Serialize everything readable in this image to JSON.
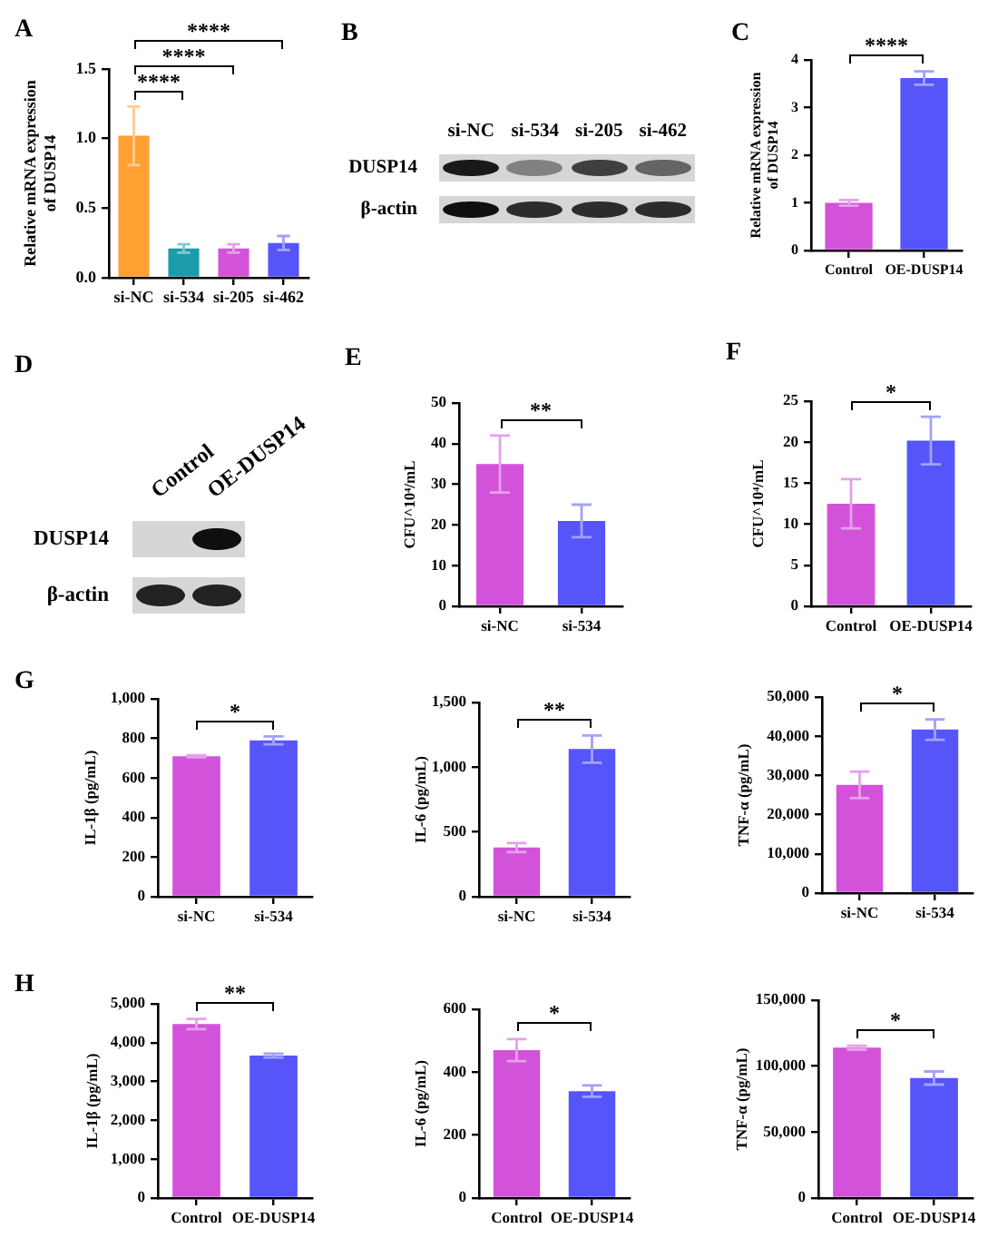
{
  "chart_data": [
    {
      "type": "bar",
      "title": "A",
      "ylabel": "Relative mRNA expression of DUSP14",
      "categories": [
        "si-NC",
        "si-534",
        "si-205",
        "si-462"
      ],
      "values": [
        1.02,
        0.21,
        0.21,
        0.25
      ],
      "errors": [
        0.21,
        0.03,
        0.03,
        0.05
      ],
      "colors": [
        "#ffa033",
        "#1b9cab",
        "#d253d9",
        "#5555fa"
      ],
      "ylim": [
        0,
        1.5
      ],
      "yticks": [
        {
          "value": 0,
          "label": "0.0"
        },
        0.5,
        {
          "value": 1,
          "label": "1.0"
        },
        1.5
      ],
      "annotations": [
        "****",
        "****",
        "****"
      ]
    },
    {
      "type": "other",
      "title": "B",
      "categories": [
        "si-NC",
        "si-534",
        "si-205",
        "si-462"
      ],
      "y_categories": [
        "DUSP14",
        "β-actin"
      ]
    },
    {
      "type": "bar",
      "title": "C",
      "ylabel": "Relative mRNA expression of DUSP14",
      "categories": [
        "Control",
        "OE-DUSP14"
      ],
      "values": [
        1.0,
        3.62
      ],
      "errors": [
        0.06,
        0.14
      ],
      "colors": [
        "#d253d9",
        "#5555fa"
      ],
      "ylim": [
        0,
        4
      ],
      "yticks": [
        0,
        1,
        2,
        3,
        4
      ],
      "annotations": [
        "****"
      ]
    },
    {
      "type": "other",
      "title": "D",
      "categories": [
        "Control",
        "OE-DUSP14"
      ],
      "y_categories": [
        "DUSP14",
        "β-actin"
      ]
    },
    {
      "type": "bar",
      "title": "E",
      "ylabel": "CFU^10⁴/mL",
      "categories": [
        "si-NC",
        "si-534"
      ],
      "values": [
        35,
        21
      ],
      "errors": [
        7,
        4
      ],
      "colors": [
        "#d253d9",
        "#5555fa"
      ],
      "ylim": [
        0,
        50
      ],
      "yticks": [
        0,
        10,
        20,
        30,
        40,
        50
      ],
      "annotations": [
        "**"
      ]
    },
    {
      "type": "bar",
      "title": "F",
      "ylabel": "CFU^10⁴/mL",
      "categories": [
        "Control",
        "OE-DUSP14"
      ],
      "values": [
        12.5,
        20.2
      ],
      "errors": [
        3,
        2.9
      ],
      "colors": [
        "#d253d9",
        "#5555fa"
      ],
      "ylim": [
        0,
        25
      ],
      "yticks": [
        0,
        5,
        10,
        15,
        20,
        25
      ],
      "annotations": [
        "*"
      ]
    },
    {
      "type": "bar",
      "title": "G",
      "ylabel": "IL-1β (pg/mL)",
      "categories": [
        "si-NC",
        "si-534"
      ],
      "values": [
        710,
        790
      ],
      "errors": [
        5,
        20
      ],
      "colors": [
        "#d253d9",
        "#5555fa"
      ],
      "ylim": [
        0,
        1000
      ],
      "yticks": [
        0,
        200,
        400,
        600,
        800,
        {
          "value": 1000,
          "label": "1,000"
        }
      ],
      "annotations": [
        "*"
      ]
    },
    {
      "type": "bar",
      "ylabel": "IL-6 (pg/mL)",
      "categories": [
        "si-NC",
        "si-534"
      ],
      "values": [
        380,
        1140
      ],
      "errors": [
        35,
        105
      ],
      "colors": [
        "#d253d9",
        "#5555fa"
      ],
      "ylim": [
        0,
        1500
      ],
      "yticks": [
        0,
        500,
        {
          "value": 1000,
          "label": "1,000"
        },
        {
          "value": 1500,
          "label": "1,500"
        }
      ],
      "annotations": [
        "**"
      ]
    },
    {
      "type": "bar",
      "ylabel": "TNF-α (pg/mL)",
      "categories": [
        "si-NC",
        "si-534"
      ],
      "values": [
        27600,
        41700
      ],
      "errors": [
        3400,
        2600
      ],
      "colors": [
        "#d253d9",
        "#5555fa"
      ],
      "ylim": [
        0,
        50000
      ],
      "yticks": [
        0,
        {
          "value": 10000,
          "label": "10,000"
        },
        {
          "value": 20000,
          "label": "20,000"
        },
        {
          "value": 30000,
          "label": "30,000"
        },
        {
          "value": 40000,
          "label": "40,000"
        },
        {
          "value": 50000,
          "label": "50,000"
        }
      ],
      "annotations": [
        "*"
      ]
    },
    {
      "type": "bar",
      "title": "H",
      "ylabel": "IL-1β (pg/mL)",
      "categories": [
        "Control",
        "OE-DUSP14"
      ],
      "values": [
        4480,
        3670
      ],
      "errors": [
        130,
        50
      ],
      "colors": [
        "#d253d9",
        "#5555fa"
      ],
      "ylim": [
        0,
        5000
      ],
      "yticks": [
        0,
        {
          "value": 1000,
          "label": "1,000"
        },
        {
          "value": 2000,
          "label": "2,000"
        },
        {
          "value": 3000,
          "label": "3,000"
        },
        {
          "value": 4000,
          "label": "4,000"
        },
        {
          "value": 5000,
          "label": "5,000"
        }
      ],
      "annotations": [
        "**"
      ]
    },
    {
      "type": "bar",
      "ylabel": "IL-6 (pg/mL)",
      "categories": [
        "Control",
        "OE-DUSP14"
      ],
      "values": [
        470,
        340
      ],
      "errors": [
        35,
        18
      ],
      "colors": [
        "#d253d9",
        "#5555fa"
      ],
      "ylim": [
        0,
        600
      ],
      "yticks": [
        0,
        200,
        400,
        600
      ],
      "annotations": [
        "*"
      ]
    },
    {
      "type": "bar",
      "ylabel": "TNF-α (pg/mL)",
      "categories": [
        "Control",
        "OE-DUSP14"
      ],
      "values": [
        114000,
        91000
      ],
      "errors": [
        1500,
        5000
      ],
      "colors": [
        "#d253d9",
        "#5555fa"
      ],
      "ylim": [
        0,
        150000
      ],
      "yticks": [
        0,
        {
          "value": 50000,
          "label": "50,000"
        },
        {
          "value": 100000,
          "label": "100,000"
        },
        {
          "value": 150000,
          "label": "150,000"
        }
      ],
      "annotations": [
        "*"
      ]
    }
  ]
}
